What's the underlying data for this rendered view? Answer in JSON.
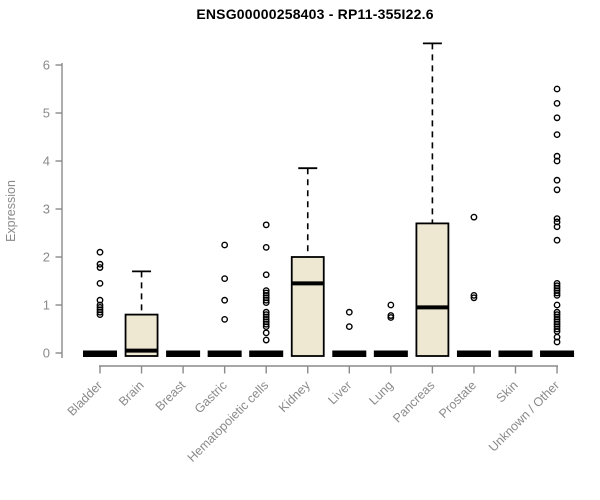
{
  "chart_data": {
    "type": "boxplot",
    "title": "ENSG00000258403 - RP11-355I22.6",
    "ylabel": "Expression",
    "xlabel": "",
    "ylim": [
      0,
      6.6
    ],
    "yticks": [
      0,
      1,
      2,
      3,
      4,
      5,
      6
    ],
    "grid": "off",
    "legend": "none",
    "categories": [
      "Bladder",
      "Brain",
      "Breast",
      "Gastric",
      "Hematopoietic cells",
      "Kidney",
      "Liver",
      "Lung",
      "Pancreas",
      "Prostate",
      "Skin",
      "Unknown / Other"
    ],
    "series": [
      {
        "category": "Bladder",
        "q1": 0,
        "median": 0,
        "q3": 0,
        "whisker_low": 0,
        "whisker_high": 0,
        "outliers": [
          2.1,
          1.85,
          1.78,
          1.45,
          1.1,
          1.0,
          0.95,
          0.9,
          0.85,
          0.8
        ]
      },
      {
        "category": "Brain",
        "q1": 0,
        "median": 0.05,
        "q3": 0.8,
        "whisker_low": 0,
        "whisker_high": 1.7,
        "outliers": []
      },
      {
        "category": "Breast",
        "q1": 0,
        "median": 0,
        "q3": 0,
        "whisker_low": 0,
        "whisker_high": 0,
        "outliers": []
      },
      {
        "category": "Gastric",
        "q1": 0,
        "median": 0,
        "q3": 0,
        "whisker_low": 0,
        "whisker_high": 0,
        "outliers": [
          2.25,
          1.55,
          1.1,
          0.7
        ]
      },
      {
        "category": "Hematopoietic cells",
        "q1": 0,
        "median": 0,
        "q3": 0,
        "whisker_low": 0,
        "whisker_high": 0,
        "outliers": [
          2.67,
          2.2,
          1.63,
          1.3,
          1.25,
          1.2,
          1.15,
          1.1,
          1.05,
          0.85,
          0.8,
          0.75,
          0.7,
          0.65,
          0.6,
          0.55,
          0.42,
          0.27
        ]
      },
      {
        "category": "Kidney",
        "q1": 0,
        "median": 1.45,
        "q3": 2.0,
        "whisker_low": 0,
        "whisker_high": 3.85,
        "outliers": []
      },
      {
        "category": "Liver",
        "q1": 0,
        "median": 0,
        "q3": 0,
        "whisker_low": 0,
        "whisker_high": 0,
        "outliers": [
          0.85,
          0.55
        ]
      },
      {
        "category": "Lung",
        "q1": 0,
        "median": 0,
        "q3": 0,
        "whisker_low": 0,
        "whisker_high": 0,
        "outliers": [
          1.0,
          0.78,
          0.74
        ]
      },
      {
        "category": "Pancreas",
        "q1": 0,
        "median": 0.95,
        "q3": 2.7,
        "whisker_low": 0,
        "whisker_high": 6.45,
        "outliers": []
      },
      {
        "category": "Prostate",
        "q1": 0,
        "median": 0,
        "q3": 0,
        "whisker_low": 0,
        "whisker_high": 0,
        "outliers": [
          2.83,
          1.2,
          1.15
        ]
      },
      {
        "category": "Skin",
        "q1": 0,
        "median": 0,
        "q3": 0,
        "whisker_low": 0,
        "whisker_high": 0,
        "outliers": []
      },
      {
        "category": "Unknown / Other",
        "q1": 0,
        "median": 0,
        "q3": 0,
        "whisker_low": 0,
        "whisker_high": 0,
        "outliers": [
          5.5,
          5.2,
          4.9,
          4.55,
          4.1,
          4.0,
          3.6,
          3.4,
          2.8,
          2.73,
          2.63,
          2.35,
          1.45,
          1.4,
          1.35,
          1.3,
          1.25,
          1.2,
          1.0,
          0.85,
          0.8,
          0.75,
          0.7,
          0.65,
          0.6,
          0.55,
          0.5,
          0.45,
          0.33,
          0.23
        ]
      }
    ],
    "colors": {
      "box_fill": "#EEE8D2",
      "box_stroke": "#000000",
      "median": "#000000",
      "axis": "#8A8A8A",
      "tick_label": "#8A8A8A",
      "title": "#000000",
      "background": "#FFFFFF"
    }
  }
}
